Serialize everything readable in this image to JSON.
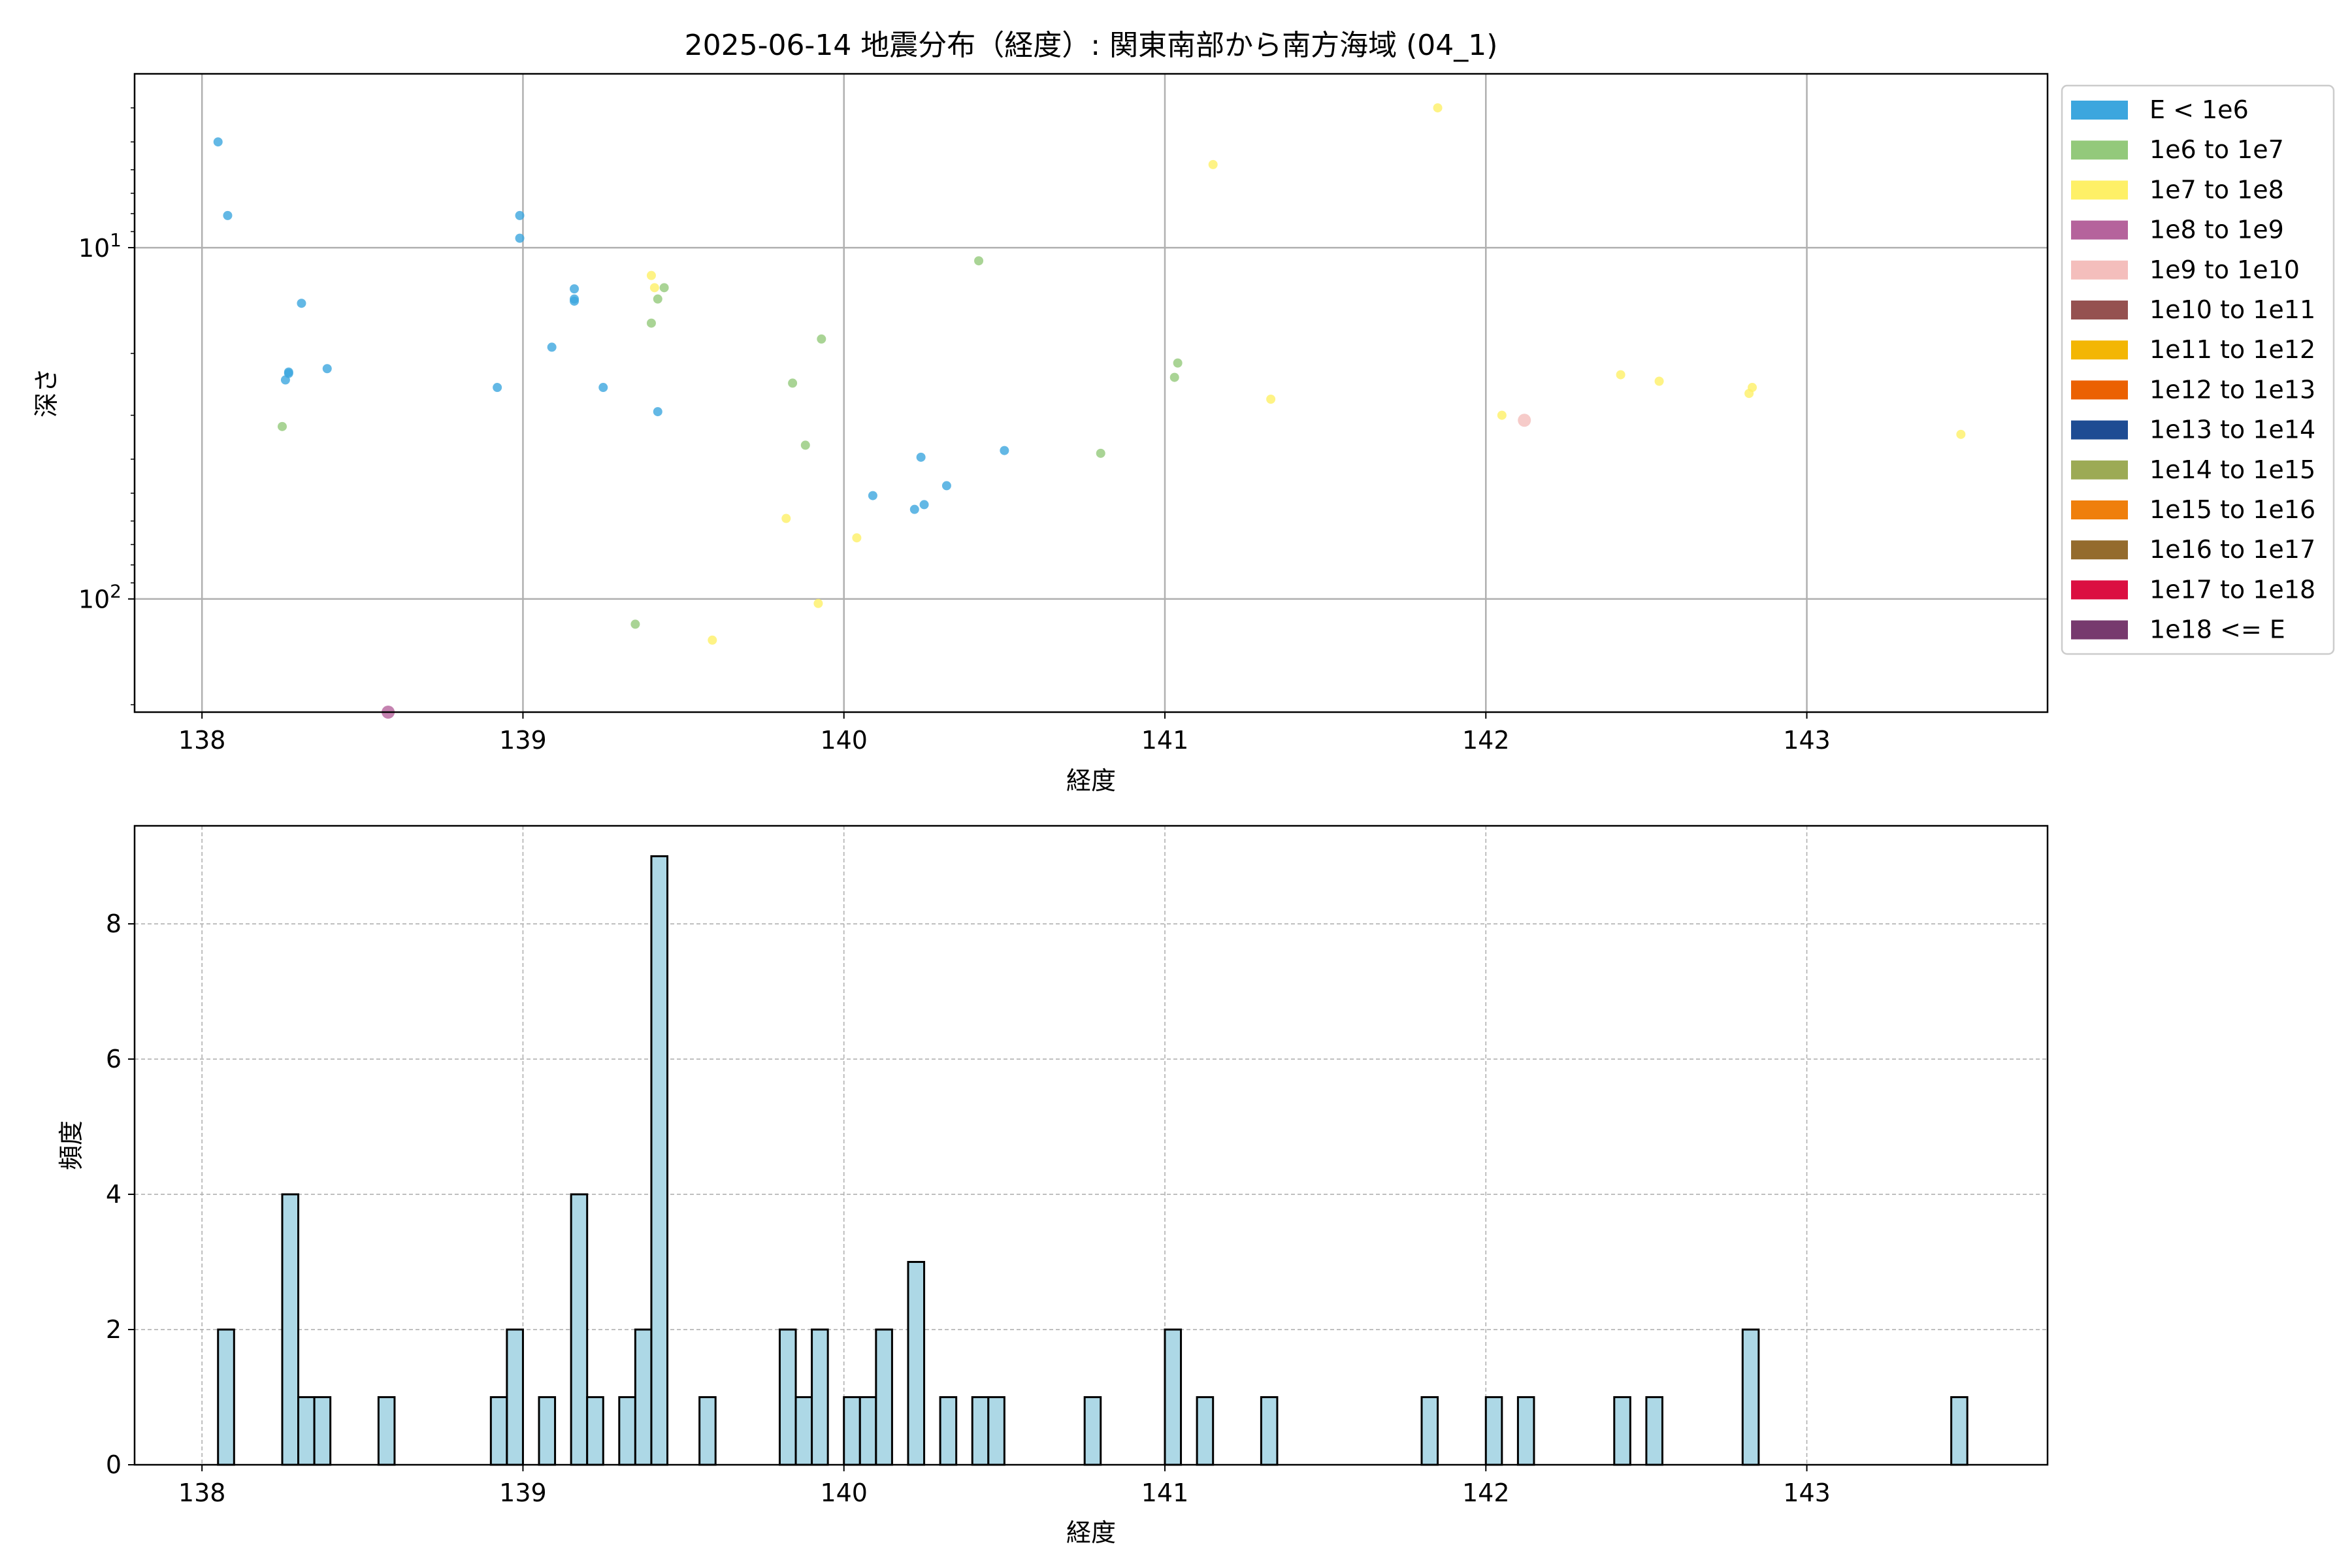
{
  "chart_data": [
    {
      "type": "scatter",
      "title": "2025-06-14 地震分布（経度）: 関東南部から南方海域 (04_1)",
      "xlabel": "経度",
      "ylabel": "深さ",
      "xlim": [
        137.79,
        143.75
      ],
      "ylim": [
        210,
        3.2
      ],
      "yscale": "log",
      "y_inverted": true,
      "grid": true,
      "xticks": [
        138,
        139,
        140,
        141,
        142,
        143
      ],
      "xtick_labels": [
        "138",
        "139",
        "140",
        "141",
        "142",
        "143"
      ],
      "ytick_labels": [
        {
          "value": 10,
          "base": "10",
          "exp": "1"
        },
        {
          "value": 100,
          "base": "10",
          "exp": "2"
        }
      ],
      "legend_position": "outside-right-top",
      "legend": [
        {
          "label": "E < 1e6",
          "color": "#3ca6de"
        },
        {
          "label": "1e6 to 1e7",
          "color": "#93c97b"
        },
        {
          "label": "1e7 to 1e8",
          "color": "#fef067"
        },
        {
          "label": "1e8 to 1e9",
          "color": "#b5639c"
        },
        {
          "label": "1e9 to 1e10",
          "color": "#f4bebc"
        },
        {
          "label": "1e10 to 1e11",
          "color": "#955150"
        },
        {
          "label": "1e11 to 1e12",
          "color": "#f3b604"
        },
        {
          "label": "1e12 to 1e13",
          "color": "#eb6102"
        },
        {
          "label": "1e13 to 1e14",
          "color": "#1e4c93"
        },
        {
          "label": "1e14 to 1e15",
          "color": "#9caa55"
        },
        {
          "label": "1e15 to 1e16",
          "color": "#ef7f0c"
        },
        {
          "label": "1e16 to 1e17",
          "color": "#946b2d"
        },
        {
          "label": "1e17 to 1e18",
          "color": "#db0f41"
        },
        {
          "label": "1e18 <= E",
          "color": "#773a6e"
        }
      ],
      "series": [
        {
          "name": "E < 1e6",
          "points": [
            [
              138.05,
              5.0
            ],
            [
              138.08,
              8.1
            ],
            [
              138.26,
              23.8
            ],
            [
              138.27,
              22.8
            ],
            [
              138.27,
              22.6
            ],
            [
              138.31,
              14.4
            ],
            [
              138.39,
              22.1
            ],
            [
              138.92,
              25.0
            ],
            [
              138.99,
              8.1
            ],
            [
              138.99,
              9.4
            ],
            [
              139.09,
              19.2
            ],
            [
              139.16,
              13.1
            ],
            [
              139.16,
              14.0
            ],
            [
              139.16,
              14.2
            ],
            [
              139.25,
              25.0
            ],
            [
              139.42,
              29.3
            ],
            [
              140.09,
              50.8
            ],
            [
              140.22,
              55.6
            ],
            [
              140.24,
              39.5
            ],
            [
              140.25,
              53.9
            ],
            [
              140.32,
              47.6
            ],
            [
              140.5,
              37.8
            ]
          ]
        },
        {
          "name": "1e6 to 1e7",
          "points": [
            [
              138.25,
              32.3
            ],
            [
              139.35,
              118.0
            ],
            [
              139.4,
              16.4
            ],
            [
              139.42,
              14.0
            ],
            [
              139.44,
              13.0
            ],
            [
              139.84,
              24.3
            ],
            [
              139.88,
              36.5
            ],
            [
              139.93,
              18.2
            ],
            [
              140.42,
              10.9
            ],
            [
              140.8,
              38.5
            ],
            [
              141.03,
              23.4
            ],
            [
              141.04,
              21.3
            ]
          ]
        },
        {
          "name": "1e7 to 1e8",
          "points": [
            [
              139.4,
              12.0
            ],
            [
              139.41,
              13.0
            ],
            [
              139.59,
              131.0
            ],
            [
              139.82,
              59.0
            ],
            [
              139.92,
              103.0
            ],
            [
              140.04,
              67.0
            ],
            [
              141.15,
              5.8
            ],
            [
              141.33,
              27.0
            ],
            [
              141.85,
              4.0
            ],
            [
              142.05,
              30.0
            ],
            [
              142.42,
              23.0
            ],
            [
              142.54,
              24.0
            ],
            [
              142.82,
              26.0
            ],
            [
              142.83,
              25.0
            ],
            [
              143.48,
              34.0
            ]
          ]
        },
        {
          "name": "1e8 to 1e9",
          "points": [
            [
              138.58,
              210.0
            ]
          ]
        },
        {
          "name": "1e9 to 1e10",
          "points": [
            [
              142.12,
              31.0
            ]
          ]
        }
      ]
    },
    {
      "type": "bar",
      "subtype": "histogram",
      "xlabel": "経度",
      "ylabel": "頻度",
      "xlim": [
        137.79,
        143.75
      ],
      "ylim": [
        0,
        9.45
      ],
      "grid": true,
      "grid_style": "dashed",
      "xticks": [
        138,
        139,
        140,
        141,
        142,
        143
      ],
      "xtick_labels": [
        "138",
        "139",
        "140",
        "141",
        "142",
        "143"
      ],
      "yticks": [
        0,
        2,
        4,
        6,
        8
      ],
      "ytick_labels": [
        "0",
        "2",
        "4",
        "6",
        "8"
      ],
      "bar_color": "#add8e6",
      "bin_width": 0.05,
      "bins": [
        {
          "x0": 138.05,
          "x1": 138.1,
          "count": 2
        },
        {
          "x0": 138.25,
          "x1": 138.3,
          "count": 4
        },
        {
          "x0": 138.3,
          "x1": 138.35,
          "count": 1
        },
        {
          "x0": 138.35,
          "x1": 138.4,
          "count": 1
        },
        {
          "x0": 138.55,
          "x1": 138.6,
          "count": 1
        },
        {
          "x0": 138.9,
          "x1": 138.95,
          "count": 1
        },
        {
          "x0": 138.95,
          "x1": 139.0,
          "count": 2
        },
        {
          "x0": 139.05,
          "x1": 139.1,
          "count": 1
        },
        {
          "x0": 139.15,
          "x1": 139.2,
          "count": 4
        },
        {
          "x0": 139.2,
          "x1": 139.25,
          "count": 1
        },
        {
          "x0": 139.3,
          "x1": 139.35,
          "count": 1
        },
        {
          "x0": 139.35,
          "x1": 139.4,
          "count": 2
        },
        {
          "x0": 139.4,
          "x1": 139.45,
          "count": 9
        },
        {
          "x0": 139.55,
          "x1": 139.6,
          "count": 1
        },
        {
          "x0": 139.8,
          "x1": 139.85,
          "count": 2
        },
        {
          "x0": 139.85,
          "x1": 139.9,
          "count": 1
        },
        {
          "x0": 139.9,
          "x1": 139.95,
          "count": 2
        },
        {
          "x0": 140.0,
          "x1": 140.05,
          "count": 1
        },
        {
          "x0": 140.05,
          "x1": 140.1,
          "count": 1
        },
        {
          "x0": 140.1,
          "x1": 140.15,
          "count": 2
        },
        {
          "x0": 140.2,
          "x1": 140.25,
          "count": 3
        },
        {
          "x0": 140.3,
          "x1": 140.35,
          "count": 1
        },
        {
          "x0": 140.4,
          "x1": 140.45,
          "count": 1
        },
        {
          "x0": 140.45,
          "x1": 140.5,
          "count": 1
        },
        {
          "x0": 140.75,
          "x1": 140.8,
          "count": 1
        },
        {
          "x0": 141.0,
          "x1": 141.05,
          "count": 2
        },
        {
          "x0": 141.1,
          "x1": 141.15,
          "count": 1
        },
        {
          "x0": 141.3,
          "x1": 141.35,
          "count": 1
        },
        {
          "x0": 141.8,
          "x1": 141.85,
          "count": 1
        },
        {
          "x0": 142.0,
          "x1": 142.05,
          "count": 1
        },
        {
          "x0": 142.1,
          "x1": 142.15,
          "count": 1
        },
        {
          "x0": 142.4,
          "x1": 142.45,
          "count": 1
        },
        {
          "x0": 142.5,
          "x1": 142.55,
          "count": 1
        },
        {
          "x0": 142.8,
          "x1": 142.85,
          "count": 2
        },
        {
          "x0": 143.45,
          "x1": 143.5,
          "count": 1
        }
      ]
    }
  ]
}
